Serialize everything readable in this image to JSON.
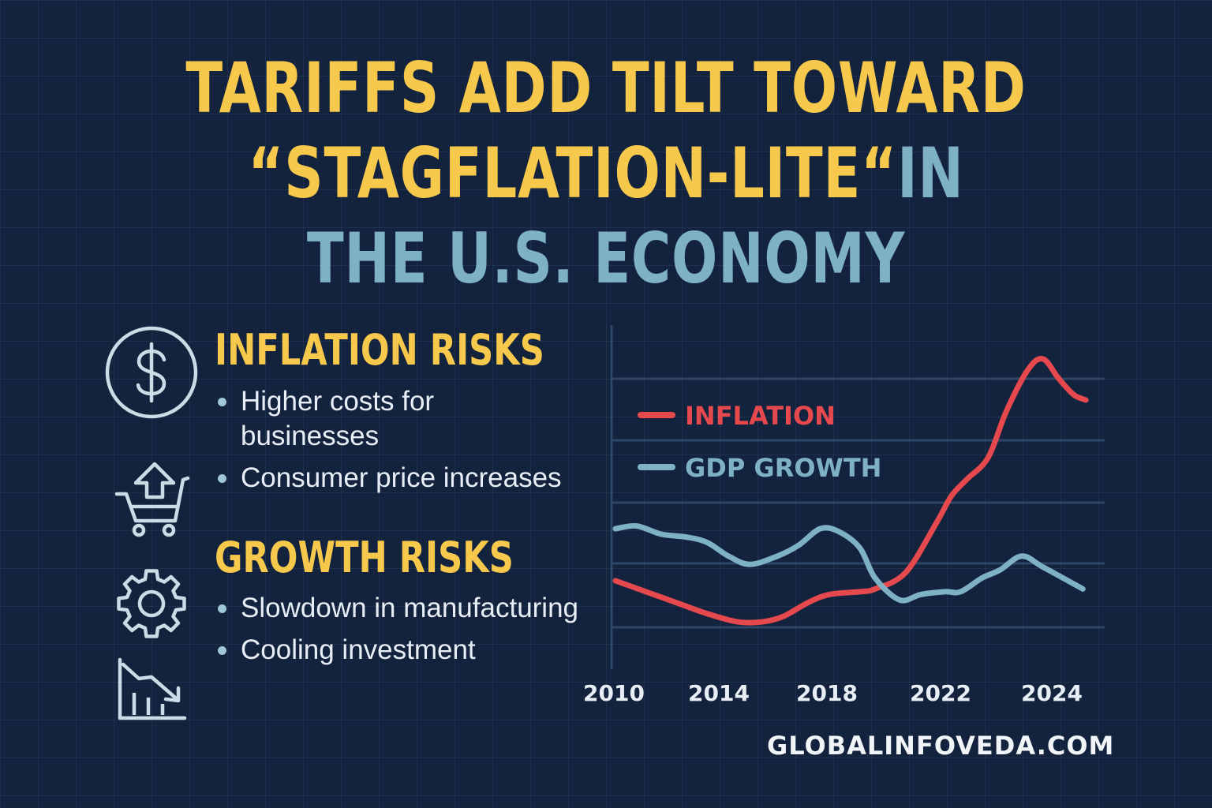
{
  "title": {
    "line1": "TARIFFS ADD TILT TOWARD",
    "line2_highlight": "“STAGFLATION-LITE“",
    "line2_rest": "IN",
    "line3": "THE U.S. ECONOMY"
  },
  "sections": [
    {
      "heading": "INFLATION RISKS",
      "bullets": [
        "Higher costs for",
        "businesses",
        "Consumer price increases"
      ]
    },
    {
      "heading": "GROWTH RISKS",
      "bullets": [
        "Slowdown in manufacturing",
        "Cooling investment"
      ]
    }
  ],
  "icons": [
    "dollar-circle-icon",
    "cart-arrow-up-icon",
    "gear-icon",
    "chart-down-arrow-icon"
  ],
  "footer": "GLOBALINFOVEDA.COM",
  "chart_data": {
    "type": "line",
    "x_ticks": [
      "2010",
      "2014",
      "2018",
      "2022",
      "2024"
    ],
    "xlim": [
      2010,
      2025.5
    ],
    "ylim": [
      0,
      10
    ],
    "legend_position": "left",
    "series": [
      {
        "name": "INFLATION",
        "color": "#e5484d",
        "x": [
          2010,
          2011,
          2012,
          2013,
          2014,
          2014.8,
          2015.5,
          2016.3,
          2017,
          2018,
          2018.5,
          2019.5,
          2020.5,
          2021,
          2021.5,
          2022.2,
          2022.8,
          2023.5,
          2024,
          2024.5,
          2025,
          2025.4
        ],
        "y": [
          1.7,
          1.3,
          0.9,
          0.5,
          0.2,
          0.2,
          0.4,
          0.9,
          1.2,
          1.3,
          1.4,
          2.0,
          3.8,
          4.8,
          5.4,
          6.2,
          7.9,
          9.4,
          9.8,
          9.1,
          8.5,
          8.3
        ]
      },
      {
        "name": "GDP GROWTH",
        "color": "#7fb1c4",
        "x": [
          2010,
          2010.7,
          2011.5,
          2012.3,
          2013,
          2013.7,
          2014.4,
          2015.3,
          2016,
          2016.7,
          2017.3,
          2018,
          2018.5,
          2019.3,
          2020,
          2020.8,
          2021.3,
          2022,
          2022.6,
          2023.3,
          2024,
          2025.3
        ],
        "y": [
          3.6,
          3.7,
          3.4,
          3.3,
          3.1,
          2.6,
          2.3,
          2.6,
          3.0,
          3.6,
          3.5,
          2.9,
          1.8,
          1.0,
          1.2,
          1.3,
          1.3,
          1.8,
          2.1,
          2.6,
          2.2,
          1.4
        ]
      }
    ]
  }
}
